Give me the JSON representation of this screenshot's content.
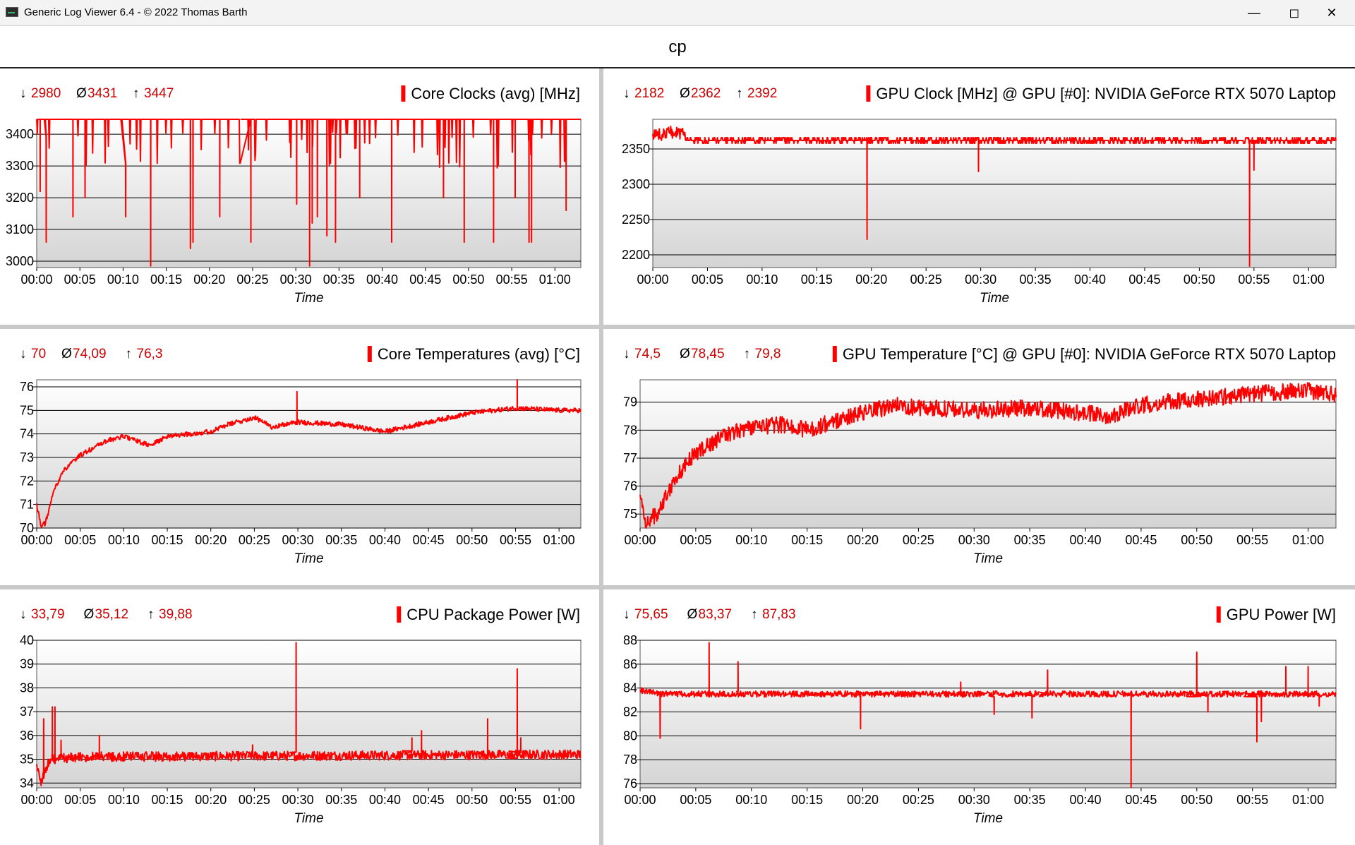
{
  "window": {
    "title": "Generic Log Viewer 6.4 - © 2022 Thomas Barth",
    "minimize_icon": "minimize-icon",
    "maximize_icon": "maximize-icon",
    "close_icon": "close-icon"
  },
  "header": {
    "title": "cp"
  },
  "colors": {
    "series": "#ff0000",
    "stats": "#cc0000",
    "grid": "#000000",
    "plot_bg_top": "#ffffff",
    "plot_bg_bottom": "#d4d4d4"
  },
  "chart_data": [
    {
      "type": "line",
      "title": "Core Clocks (avg) [MHz]",
      "stats": {
        "min_symbol": "↓",
        "min": "2980",
        "avg_symbol": "Ø",
        "avg": "3431",
        "max_symbol": "↑",
        "max": "3447"
      },
      "xlabel": "Time",
      "xticks": [
        "00:00",
        "00:05",
        "00:10",
        "00:15",
        "00:20",
        "00:25",
        "00:30",
        "00:35",
        "00:40",
        "00:45",
        "00:50",
        "00:55",
        "01:00"
      ],
      "xlim": [
        0,
        63
      ],
      "yticks": [
        3000,
        3100,
        3200,
        3300,
        3400
      ],
      "ylim": [
        2980,
        3447
      ],
      "series": [
        {
          "base": 3447,
          "spikes": [
            [
              0.4,
              3220
            ],
            [
              1.1,
              3060
            ],
            [
              4.2,
              3140
            ],
            [
              5.6,
              3200
            ],
            [
              10.3,
              3140
            ],
            [
              13.2,
              2985
            ],
            [
              17.8,
              3040
            ],
            [
              18.1,
              3060
            ],
            [
              21.2,
              3140
            ],
            [
              24.8,
              3060
            ],
            [
              30.1,
              3180
            ],
            [
              31.6,
              2985
            ],
            [
              31.9,
              3120
            ],
            [
              32.5,
              3140
            ],
            [
              33.6,
              3080
            ],
            [
              34.6,
              3060
            ],
            [
              37.4,
              3200
            ],
            [
              41.1,
              3060
            ],
            [
              47.1,
              3200
            ],
            [
              49.5,
              3060
            ],
            [
              52.9,
              3060
            ],
            [
              55.4,
              3200
            ],
            [
              57.0,
              3060
            ],
            [
              57.3,
              3060
            ],
            [
              61.3,
              3160
            ]
          ],
          "dips": 130
        }
      ]
    },
    {
      "type": "line",
      "title": "GPU Clock [MHz] @ GPU [#0]: NVIDIA GeForce RTX 5070 Laptop",
      "stats": {
        "min_symbol": "↓",
        "min": "2182",
        "avg_symbol": "Ø",
        "avg": "2362",
        "max_symbol": "↑",
        "max": "2392"
      },
      "xlabel": "Time",
      "xticks": [
        "00:00",
        "00:05",
        "00:10",
        "00:15",
        "00:20",
        "00:25",
        "00:30",
        "00:35",
        "00:40",
        "00:45",
        "00:50",
        "00:55",
        "01:00"
      ],
      "xlim": [
        0,
        62.5
      ],
      "yticks": [
        2200,
        2250,
        2300,
        2350
      ],
      "ylim": [
        2182,
        2392
      ],
      "series": [
        {
          "base": 2362,
          "spikes": [
            [
              19.6,
              2222
            ],
            [
              29.8,
              2318
            ],
            [
              54.6,
              2184
            ],
            [
              55.0,
              2320
            ]
          ]
        }
      ]
    },
    {
      "type": "line",
      "title": "Core Temperatures (avg) [°C]",
      "stats": {
        "min_symbol": "↓",
        "min": "70",
        "avg_symbol": "Ø",
        "avg": "74,09",
        "max_symbol": "↑",
        "max": "76,3"
      },
      "xlabel": "Time",
      "xticks": [
        "00:00",
        "00:05",
        "00:10",
        "00:15",
        "00:20",
        "00:25",
        "00:30",
        "00:35",
        "00:40",
        "00:45",
        "00:50",
        "00:55",
        "01:00"
      ],
      "xlim": [
        0,
        62.5
      ],
      "yticks": [
        70,
        71,
        72,
        73,
        74,
        75,
        76
      ],
      "ylim": [
        70,
        76.3
      ],
      "series": [
        {
          "trend": [
            [
              0,
              71.0
            ],
            [
              0.5,
              70.1
            ],
            [
              1.0,
              70.2
            ],
            [
              2,
              71.6
            ],
            [
              3,
              72.4
            ],
            [
              5,
              73.1
            ],
            [
              8,
              73.7
            ],
            [
              10,
              73.9
            ],
            [
              13,
              73.5
            ],
            [
              15,
              73.9
            ],
            [
              20,
              74.1
            ],
            [
              22,
              74.4
            ],
            [
              25,
              74.7
            ],
            [
              27,
              74.3
            ],
            [
              30,
              74.5
            ],
            [
              35,
              74.4
            ],
            [
              40,
              74.1
            ],
            [
              45,
              74.5
            ],
            [
              50,
              74.9
            ],
            [
              55,
              75.1
            ],
            [
              60,
              75.0
            ],
            [
              62.5,
              75.0
            ]
          ],
          "spikes": [
            [
              29.9,
              75.8
            ],
            [
              55.2,
              76.3
            ]
          ],
          "noise": 0.1
        }
      ]
    },
    {
      "type": "line",
      "title": "GPU Temperature [°C] @ GPU [#0]: NVIDIA GeForce RTX 5070 Laptop",
      "stats": {
        "min_symbol": "↓",
        "min": "74,5",
        "avg_symbol": "Ø",
        "avg": "78,45",
        "max_symbol": "↑",
        "max": "79,8"
      },
      "xlabel": "Time",
      "xticks": [
        "00:00",
        "00:05",
        "00:10",
        "00:15",
        "00:20",
        "00:25",
        "00:30",
        "00:35",
        "00:40",
        "00:45",
        "00:50",
        "00:55",
        "01:00"
      ],
      "xlim": [
        0,
        62.5
      ],
      "yticks": [
        75,
        76,
        77,
        78,
        79
      ],
      "ylim": [
        74.5,
        79.8
      ],
      "series": [
        {
          "trend": [
            [
              0,
              75.6
            ],
            [
              0.5,
              74.7
            ],
            [
              1.5,
              75.0
            ],
            [
              3,
              76.2
            ],
            [
              5,
              77.2
            ],
            [
              8,
              77.9
            ],
            [
              10,
              78.1
            ],
            [
              13,
              78.2
            ],
            [
              15,
              78.0
            ],
            [
              18,
              78.4
            ],
            [
              20,
              78.6
            ],
            [
              23,
              78.9
            ],
            [
              25,
              78.8
            ],
            [
              30,
              78.7
            ],
            [
              35,
              78.8
            ],
            [
              40,
              78.6
            ],
            [
              42,
              78.5
            ],
            [
              45,
              78.9
            ],
            [
              50,
              79.1
            ],
            [
              55,
              79.3
            ],
            [
              60,
              79.4
            ],
            [
              62.5,
              79.3
            ]
          ],
          "spikes": [],
          "noise": 0.3
        }
      ]
    },
    {
      "type": "line",
      "title": "CPU Package Power [W]",
      "stats": {
        "min_symbol": "↓",
        "min": "33,79",
        "avg_symbol": "Ø",
        "avg": "35,12",
        "max_symbol": "↑",
        "max": "39,88"
      },
      "xlabel": "Time",
      "xticks": [
        "00:00",
        "00:05",
        "00:10",
        "00:15",
        "00:20",
        "00:25",
        "00:30",
        "00:35",
        "00:40",
        "00:45",
        "00:50",
        "00:55",
        "01:00"
      ],
      "xlim": [
        0,
        62.5
      ],
      "yticks": [
        34,
        35,
        36,
        37,
        38,
        39,
        40
      ],
      "ylim": [
        33.8,
        40
      ],
      "series": [
        {
          "trend": [
            [
              0,
              34.8
            ],
            [
              0.5,
              34.0
            ],
            [
              1.5,
              35.0
            ],
            [
              5,
              35.1
            ],
            [
              60,
              35.2
            ],
            [
              62.5,
              35.2
            ]
          ],
          "spikes": [
            [
              0.8,
              36.7
            ],
            [
              1.8,
              37.2
            ],
            [
              2.1,
              37.2
            ],
            [
              2.8,
              35.8
            ],
            [
              7.2,
              36.0
            ],
            [
              24.8,
              35.6
            ],
            [
              29.8,
              39.9
            ],
            [
              43.1,
              35.9
            ],
            [
              44.2,
              36.2
            ],
            [
              51.8,
              36.7
            ],
            [
              55.2,
              38.8
            ],
            [
              55.6,
              35.9
            ]
          ],
          "noise": 0.2
        }
      ]
    },
    {
      "type": "line",
      "title": "GPU Power [W]",
      "stats": {
        "min_symbol": "↓",
        "min": "75,65",
        "avg_symbol": "Ø",
        "avg": "83,37",
        "max_symbol": "↑",
        "max": "87,83"
      },
      "xlabel": "Time",
      "xticks": [
        "00:00",
        "00:05",
        "00:10",
        "00:15",
        "00:20",
        "00:25",
        "00:30",
        "00:35",
        "00:40",
        "00:45",
        "00:50",
        "00:55",
        "01:00"
      ],
      "xlim": [
        0,
        62.5
      ],
      "yticks": [
        76,
        78,
        80,
        82,
        84,
        86,
        88
      ],
      "ylim": [
        75.65,
        88
      ],
      "series": [
        {
          "trend": [
            [
              0,
              83.8
            ],
            [
              2,
              83.5
            ],
            [
              62.5,
              83.5
            ]
          ],
          "spikes": [
            [
              1.8,
              79.8
            ],
            [
              6.2,
              87.8
            ],
            [
              8.8,
              86.2
            ],
            [
              19.8,
              80.6
            ],
            [
              28.8,
              84.5
            ],
            [
              31.8,
              81.8
            ],
            [
              33.6,
              83.5
            ],
            [
              35.2,
              81.5
            ],
            [
              36.6,
              85.5
            ],
            [
              44.1,
              75.7
            ],
            [
              50.0,
              87.0
            ],
            [
              51.0,
              82.0
            ],
            [
              55.4,
              79.5
            ],
            [
              55.8,
              81.2
            ],
            [
              58.0,
              85.8
            ],
            [
              60.0,
              85.8
            ],
            [
              61.0,
              82.5
            ]
          ],
          "noise": 0.25
        }
      ]
    }
  ]
}
